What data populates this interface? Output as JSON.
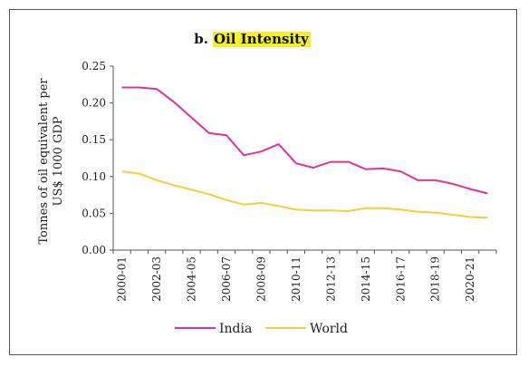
{
  "chart_data": {
    "type": "line",
    "title_prefix": "b.",
    "title": "Oil Intensity",
    "title_highlight_color": "#f3f02a",
    "ylabel_line1": "Tonnes of oil equivalent per",
    "ylabel_line2": "US$ 1000 GDP",
    "ylim": [
      0,
      0.25
    ],
    "yticks": [
      "0.00",
      "0.05",
      "0.10",
      "0.15",
      "0.20",
      "0.25"
    ],
    "x": [
      "2000-01",
      "2001-02",
      "2002-03",
      "2003-04",
      "2004-05",
      "2005-06",
      "2006-07",
      "2007-08",
      "2008-09",
      "2009-10",
      "2010-11",
      "2011-12",
      "2012-13",
      "2013-14",
      "2014-15",
      "2015-16",
      "2016-17",
      "2017-18",
      "2018-19",
      "2019-20",
      "2020-21",
      "2021-22"
    ],
    "xtick_labels": [
      "2000-01",
      "",
      "2002-03",
      "",
      "2004-05",
      "",
      "2006-07",
      "",
      "2008-09",
      "",
      "2010-11",
      "",
      "2012-13",
      "",
      "2014-15",
      "",
      "2016-17",
      "",
      "2018-19",
      "",
      "2020-21",
      ""
    ],
    "grid": false,
    "legend_position": "bottom",
    "series": [
      {
        "name": "India",
        "color": "#e0339a",
        "values": [
          0.221,
          0.221,
          0.219,
          0.201,
          0.18,
          0.159,
          0.156,
          0.129,
          0.134,
          0.144,
          0.118,
          0.112,
          0.12,
          0.12,
          0.11,
          0.111,
          0.107,
          0.095,
          0.095,
          0.09,
          0.083,
          0.077
        ]
      },
      {
        "name": "World",
        "color": "#f5cf3b",
        "values": [
          0.107,
          0.104,
          0.095,
          0.088,
          0.082,
          0.076,
          0.068,
          0.062,
          0.064,
          0.06,
          0.055,
          0.054,
          0.054,
          0.053,
          0.057,
          0.057,
          0.055,
          0.052,
          0.051,
          0.048,
          0.045,
          0.044
        ]
      }
    ]
  }
}
